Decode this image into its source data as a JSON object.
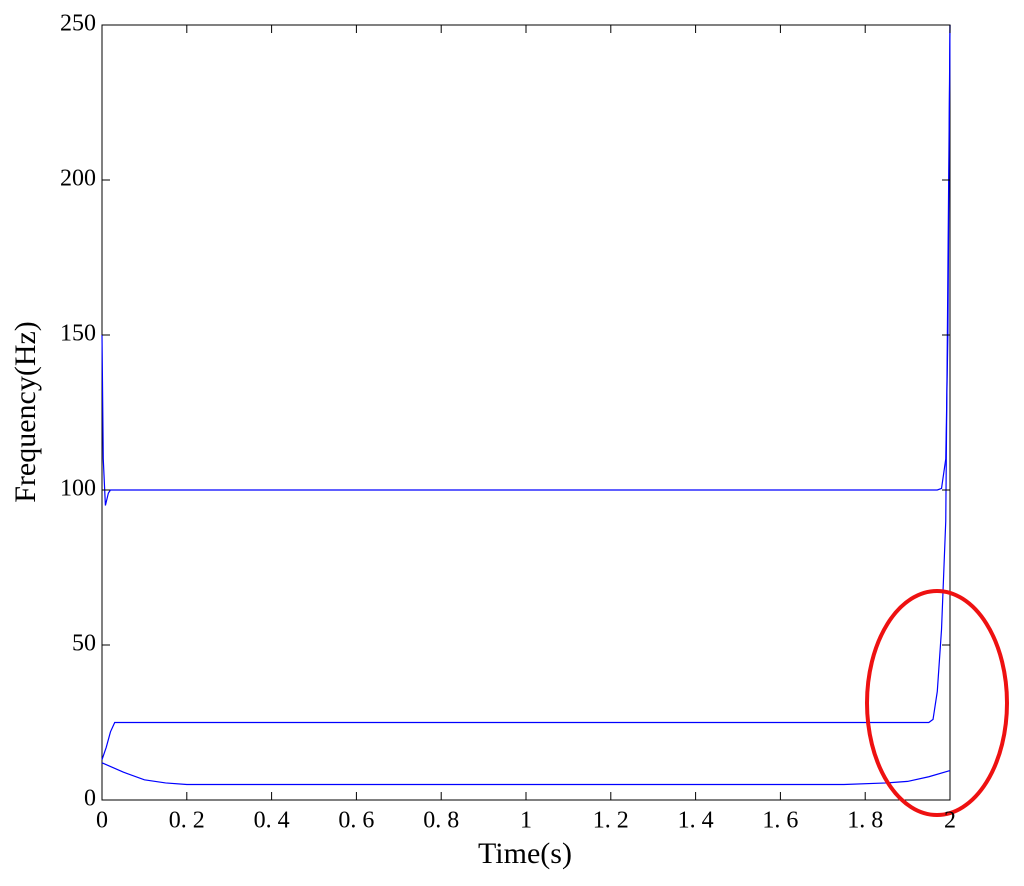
{
  "chart_data": {
    "type": "line",
    "xlabel": "Time(s)",
    "ylabel": "Frequency(Hz)",
    "xlim": [
      0,
      2
    ],
    "ylim": [
      0,
      250
    ],
    "xticks": [
      0,
      {
        "value": 0.2,
        "label": "0. 2"
      },
      {
        "value": 0.4,
        "label": "0. 4"
      },
      {
        "value": 0.6,
        "label": "0. 6"
      },
      {
        "value": 0.8,
        "label": "0. 8"
      },
      1,
      {
        "value": 1.2,
        "label": "1. 2"
      },
      {
        "value": 1.4,
        "label": "1. 4"
      },
      {
        "value": 1.6,
        "label": "1. 6"
      },
      {
        "value": 1.8,
        "label": "1. 8"
      },
      2
    ],
    "yticks": [
      0,
      50,
      100,
      150,
      200,
      250
    ],
    "series": [
      {
        "color": "#0000ff",
        "x": [
          0,
          0.003,
          0.008,
          0.015,
          0.02,
          0.05,
          1.0,
          1.95,
          1.97,
          1.98,
          1.99,
          1.995,
          2.0
        ],
        "values": [
          150,
          110,
          95,
          99,
          100,
          100,
          100,
          100,
          100,
          100.5,
          110,
          150,
          250
        ]
      },
      {
        "color": "#0000ff",
        "x": [
          0,
          0.01,
          0.02,
          0.03,
          0.05,
          1.0,
          1.95,
          1.96,
          1.97,
          1.98,
          1.99,
          2.0
        ],
        "values": [
          13,
          17,
          22,
          25,
          25,
          25,
          25,
          26,
          35,
          55,
          90,
          250
        ]
      },
      {
        "color": "#0000ff",
        "x": [
          0,
          0.05,
          0.1,
          0.15,
          0.2,
          0.3,
          1.0,
          1.75,
          1.85,
          1.9,
          1.95,
          2.0
        ],
        "values": [
          12,
          9,
          6.5,
          5.5,
          5,
          5,
          5,
          5,
          5.5,
          6,
          7.5,
          9.5
        ]
      }
    ]
  }
}
